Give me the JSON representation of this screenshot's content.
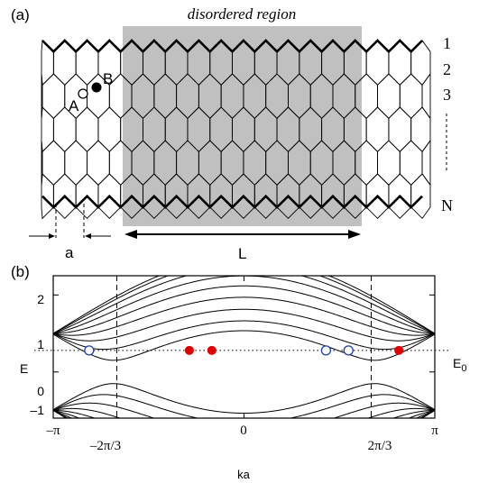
{
  "panel_a": {
    "label": "(a)",
    "region_title": "disordered region",
    "site_A": "A",
    "site_B": "B",
    "row_labels": [
      "1",
      "2",
      "3",
      "N"
    ],
    "width_label": "a",
    "length_label": "L",
    "colors": {
      "disordered": "#c0c0c0",
      "site_B_fill": "#000000",
      "site_A_fill": "#ffffff"
    }
  },
  "panel_b": {
    "label": "(b)",
    "energy_symbol": "E",
    "fermi_label_main": "E",
    "fermi_label_sub": "0",
    "colors": {
      "filled_marker": "#e00000",
      "open_marker": "#1f3fbf"
    }
  },
  "chart_data": {
    "type": "line",
    "xlabel": "ka",
    "x_ticks": [
      "–π",
      "–2π/3",
      "0",
      "2π/3",
      "π"
    ],
    "y_ticks": [
      "–1",
      "0",
      "1",
      "2"
    ],
    "xlim": [
      -3.1416,
      3.1416
    ],
    "ylim": [
      -1.2,
      2.5
    ],
    "E0": 0.56,
    "vertical_guides_x": [
      -2.0944,
      2.0944
    ],
    "filled_markers_x": [
      -0.9,
      -0.53,
      2.55
    ],
    "open_markers_x": [
      -2.55,
      1.35,
      1.72
    ]
  }
}
